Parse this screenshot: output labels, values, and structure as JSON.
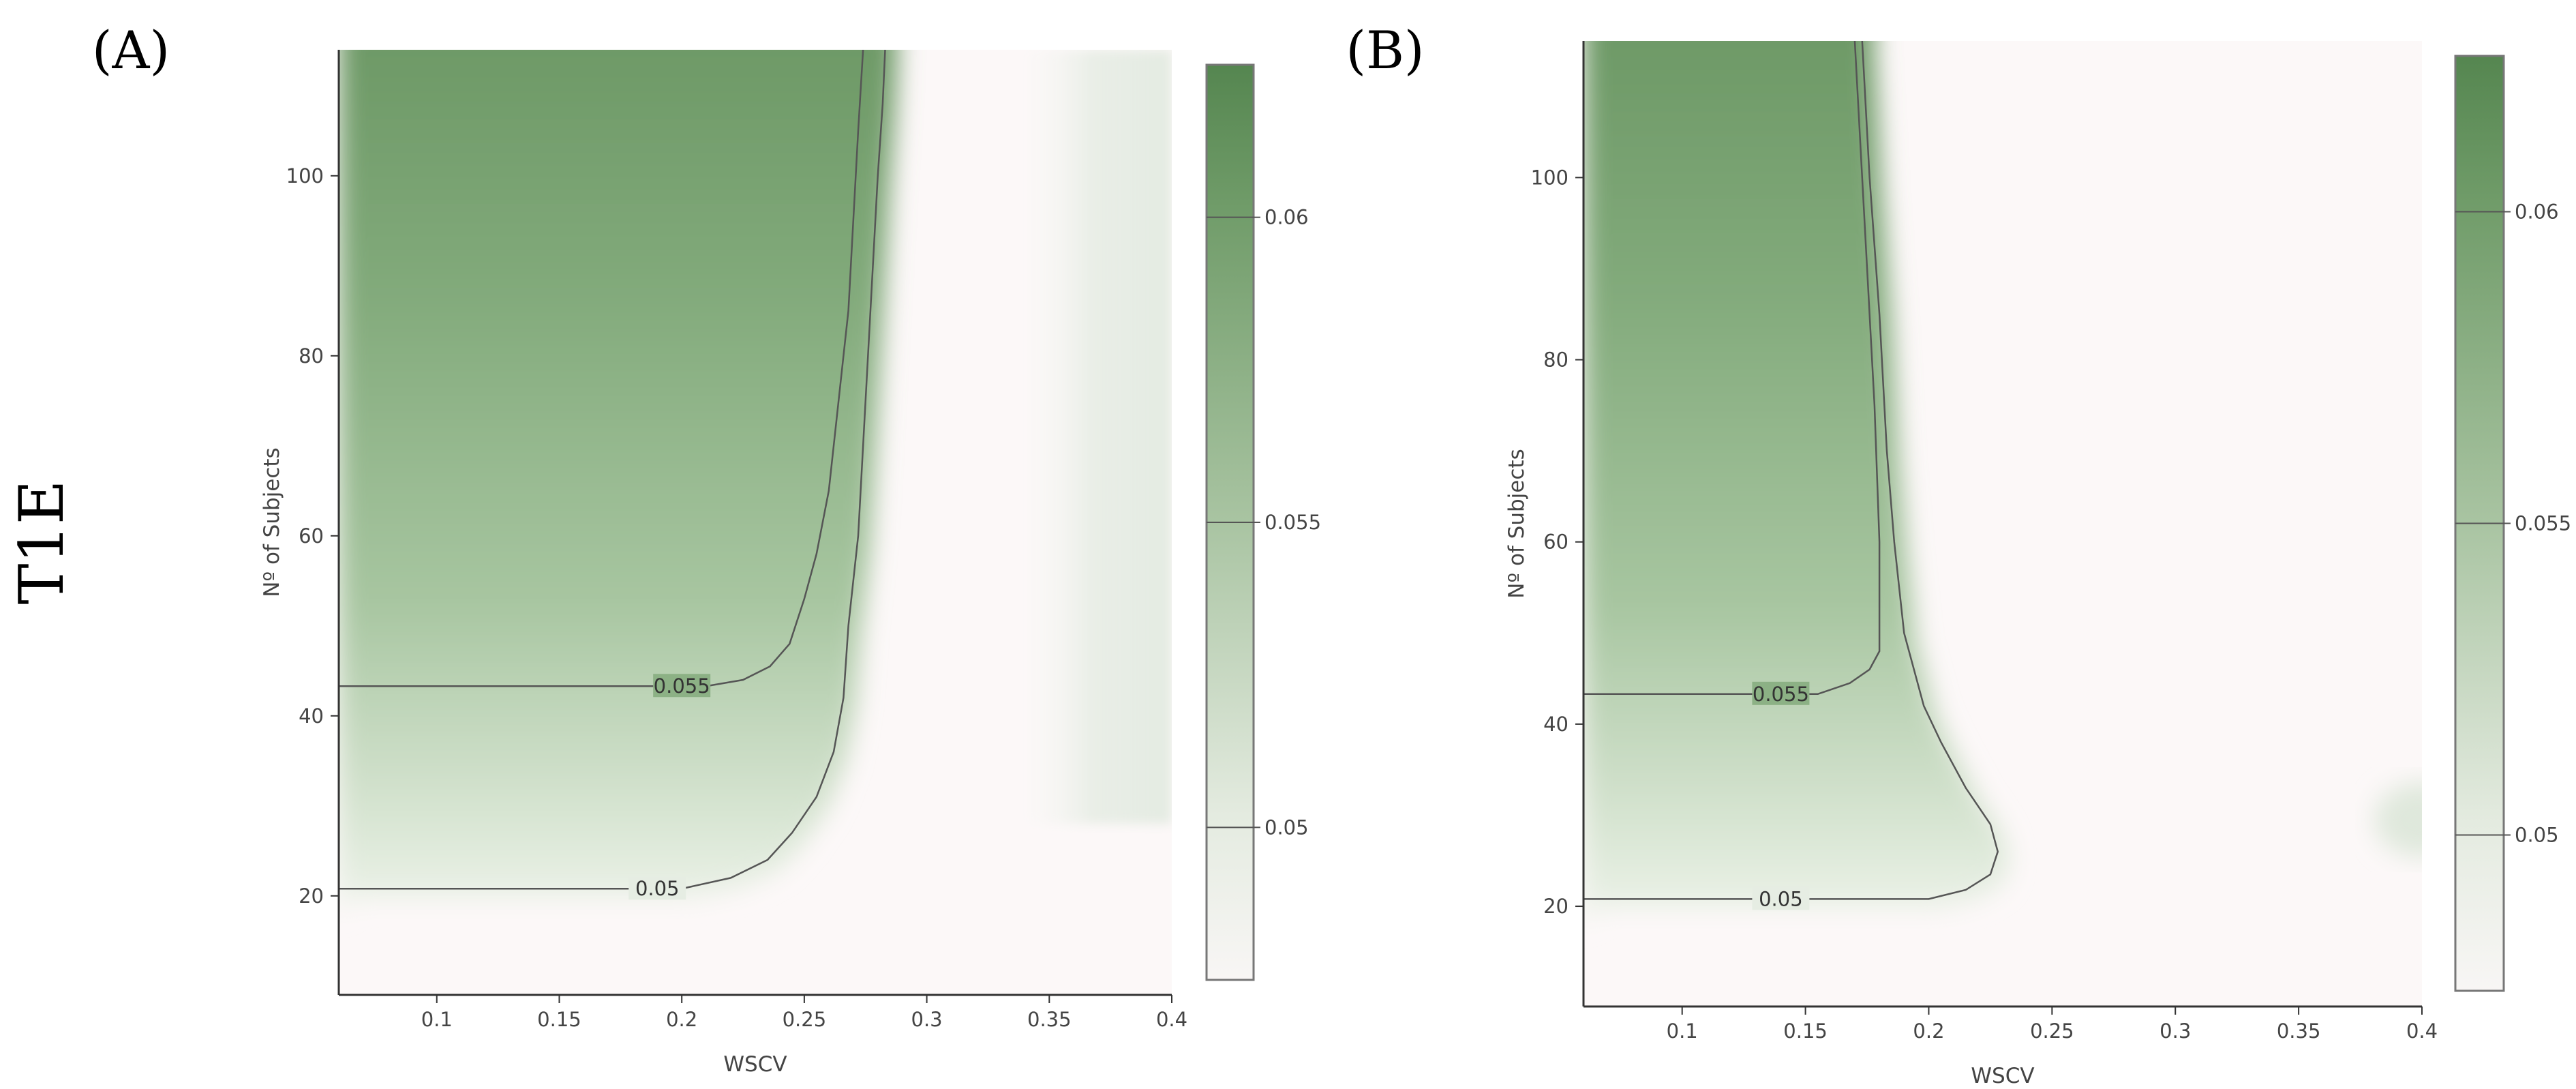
{
  "row_label": "T1E",
  "colors": {
    "low": "#fcf8f8",
    "mid": "#e9efe6",
    "high": "#5b8a55",
    "contour": "#555555",
    "axis": "#333333"
  },
  "chart_data": [
    {
      "type": "heatmap",
      "panel_label": "(A)",
      "title": "",
      "xlabel": "WSCV",
      "ylabel": "Nº of Subjects",
      "xlim": [
        0.06,
        0.4
      ],
      "ylim": [
        9,
        114
      ],
      "xticks": [
        0.1,
        0.15,
        0.2,
        0.25,
        0.3,
        0.35,
        0.4
      ],
      "xtick_labels": [
        "0.1",
        "0.15",
        "0.2",
        "0.25",
        "0.3",
        "0.35",
        "0.4"
      ],
      "yticks": [
        20,
        40,
        60,
        80,
        100
      ],
      "ytick_labels": [
        "20",
        "40",
        "60",
        "80",
        "100"
      ],
      "colorbar": {
        "range": [
          0.0475,
          0.0625
        ],
        "ticks": [
          0.05,
          0.055,
          0.06
        ],
        "tick_labels": [
          "0.05",
          "0.055",
          "0.06"
        ]
      },
      "contours": [
        {
          "level": "0.05",
          "label_at": [
            0.19,
            20.8
          ],
          "points": [
            [
              0.06,
              20.8
            ],
            [
              0.2,
              20.8
            ],
            [
              0.22,
              22
            ],
            [
              0.235,
              24
            ],
            [
              0.245,
              27
            ],
            [
              0.255,
              31
            ],
            [
              0.262,
              36
            ],
            [
              0.266,
              42
            ],
            [
              0.268,
              50
            ],
            [
              0.272,
              60
            ],
            [
              0.275,
              75
            ],
            [
              0.278,
              90
            ],
            [
              0.28,
              100
            ],
            [
              0.282,
              108
            ],
            [
              0.283,
              114
            ]
          ]
        },
        {
          "level": "0.055",
          "label_at": [
            0.2,
            43.3
          ],
          "points": [
            [
              0.06,
              43.3
            ],
            [
              0.21,
              43.3
            ],
            [
              0.225,
              44
            ],
            [
              0.236,
              45.5
            ],
            [
              0.244,
              48
            ],
            [
              0.25,
              53
            ],
            [
              0.255,
              58
            ],
            [
              0.26,
              65
            ],
            [
              0.264,
              75
            ],
            [
              0.268,
              85
            ],
            [
              0.27,
              95
            ],
            [
              0.272,
              105
            ],
            [
              0.274,
              114
            ]
          ]
        }
      ]
    },
    {
      "type": "heatmap",
      "panel_label": "(B)",
      "title": "",
      "xlabel": "WSCV",
      "ylabel": "Nº of Subjects",
      "xlim": [
        0.06,
        0.4
      ],
      "ylim": [
        9,
        115
      ],
      "xticks": [
        0.1,
        0.15,
        0.2,
        0.25,
        0.3,
        0.35,
        0.4
      ],
      "xtick_labels": [
        "0.1",
        "0.15",
        "0.2",
        "0.25",
        "0.3",
        "0.35",
        "0.4"
      ],
      "yticks": [
        20,
        40,
        60,
        80,
        100
      ],
      "ytick_labels": [
        "20",
        "40",
        "60",
        "80",
        "100"
      ],
      "colorbar": {
        "range": [
          0.0475,
          0.0625
        ],
        "ticks": [
          0.05,
          0.055,
          0.06
        ],
        "tick_labels": [
          "0.05",
          "0.055",
          "0.06"
        ]
      },
      "contours": [
        {
          "level": "0.05",
          "label_at": [
            0.14,
            20.8
          ],
          "points": [
            [
              0.06,
              20.8
            ],
            [
              0.2,
              20.8
            ],
            [
              0.215,
              21.8
            ],
            [
              0.225,
              23.5
            ],
            [
              0.228,
              26
            ],
            [
              0.225,
              29
            ],
            [
              0.215,
              33
            ],
            [
              0.205,
              38
            ],
            [
              0.198,
              42
            ],
            [
              0.19,
              50
            ],
            [
              0.186,
              60
            ],
            [
              0.183,
              70
            ],
            [
              0.18,
              85
            ],
            [
              0.176,
              100
            ],
            [
              0.173,
              115
            ]
          ]
        },
        {
          "level": "0.055",
          "label_at": [
            0.14,
            43.3
          ],
          "points": [
            [
              0.06,
              43.3
            ],
            [
              0.155,
              43.3
            ],
            [
              0.168,
              44.5
            ],
            [
              0.176,
              46
            ],
            [
              0.18,
              48
            ],
            [
              0.18,
              60
            ],
            [
              0.178,
              75
            ],
            [
              0.175,
              90
            ],
            [
              0.172,
              105
            ],
            [
              0.17,
              115
            ]
          ]
        }
      ]
    }
  ]
}
